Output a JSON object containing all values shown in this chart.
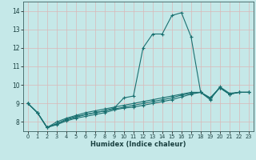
{
  "xlabel": "Humidex (Indice chaleur)",
  "background_color": "#c5e8e8",
  "grid_color": "#dab8b8",
  "line_color": "#1a7070",
  "xlim": [
    -0.5,
    23.5
  ],
  "ylim": [
    7.5,
    14.5
  ],
  "yticks": [
    8,
    9,
    10,
    11,
    12,
    13,
    14
  ],
  "xticks": [
    0,
    1,
    2,
    3,
    4,
    5,
    6,
    7,
    8,
    9,
    10,
    11,
    12,
    13,
    14,
    15,
    16,
    17,
    18,
    19,
    20,
    21,
    22,
    23
  ],
  "series": [
    [
      9.0,
      8.5,
      7.7,
      7.9,
      8.15,
      8.3,
      8.4,
      8.5,
      8.6,
      8.75,
      9.3,
      9.4,
      12.0,
      12.75,
      12.75,
      13.75,
      13.9,
      12.6,
      9.6,
      9.2,
      9.9,
      9.55,
      9.6,
      9.6
    ],
    [
      9.0,
      8.5,
      7.7,
      8.0,
      8.2,
      8.35,
      8.5,
      8.6,
      8.7,
      8.8,
      8.9,
      9.0,
      9.1,
      9.2,
      9.3,
      9.4,
      9.5,
      9.6,
      9.6,
      9.25,
      9.85,
      9.5,
      9.6,
      9.6
    ],
    [
      9.0,
      8.5,
      7.7,
      7.9,
      8.1,
      8.25,
      8.4,
      8.5,
      8.6,
      8.7,
      8.8,
      8.9,
      9.0,
      9.1,
      9.2,
      9.3,
      9.45,
      9.55,
      9.6,
      9.3,
      9.85,
      9.5,
      9.6,
      9.6
    ],
    [
      9.0,
      8.5,
      7.7,
      7.85,
      8.05,
      8.2,
      8.3,
      8.4,
      8.5,
      8.65,
      8.75,
      8.8,
      8.9,
      9.0,
      9.1,
      9.2,
      9.35,
      9.5,
      9.6,
      9.3,
      9.85,
      9.5,
      9.6,
      9.6
    ]
  ]
}
